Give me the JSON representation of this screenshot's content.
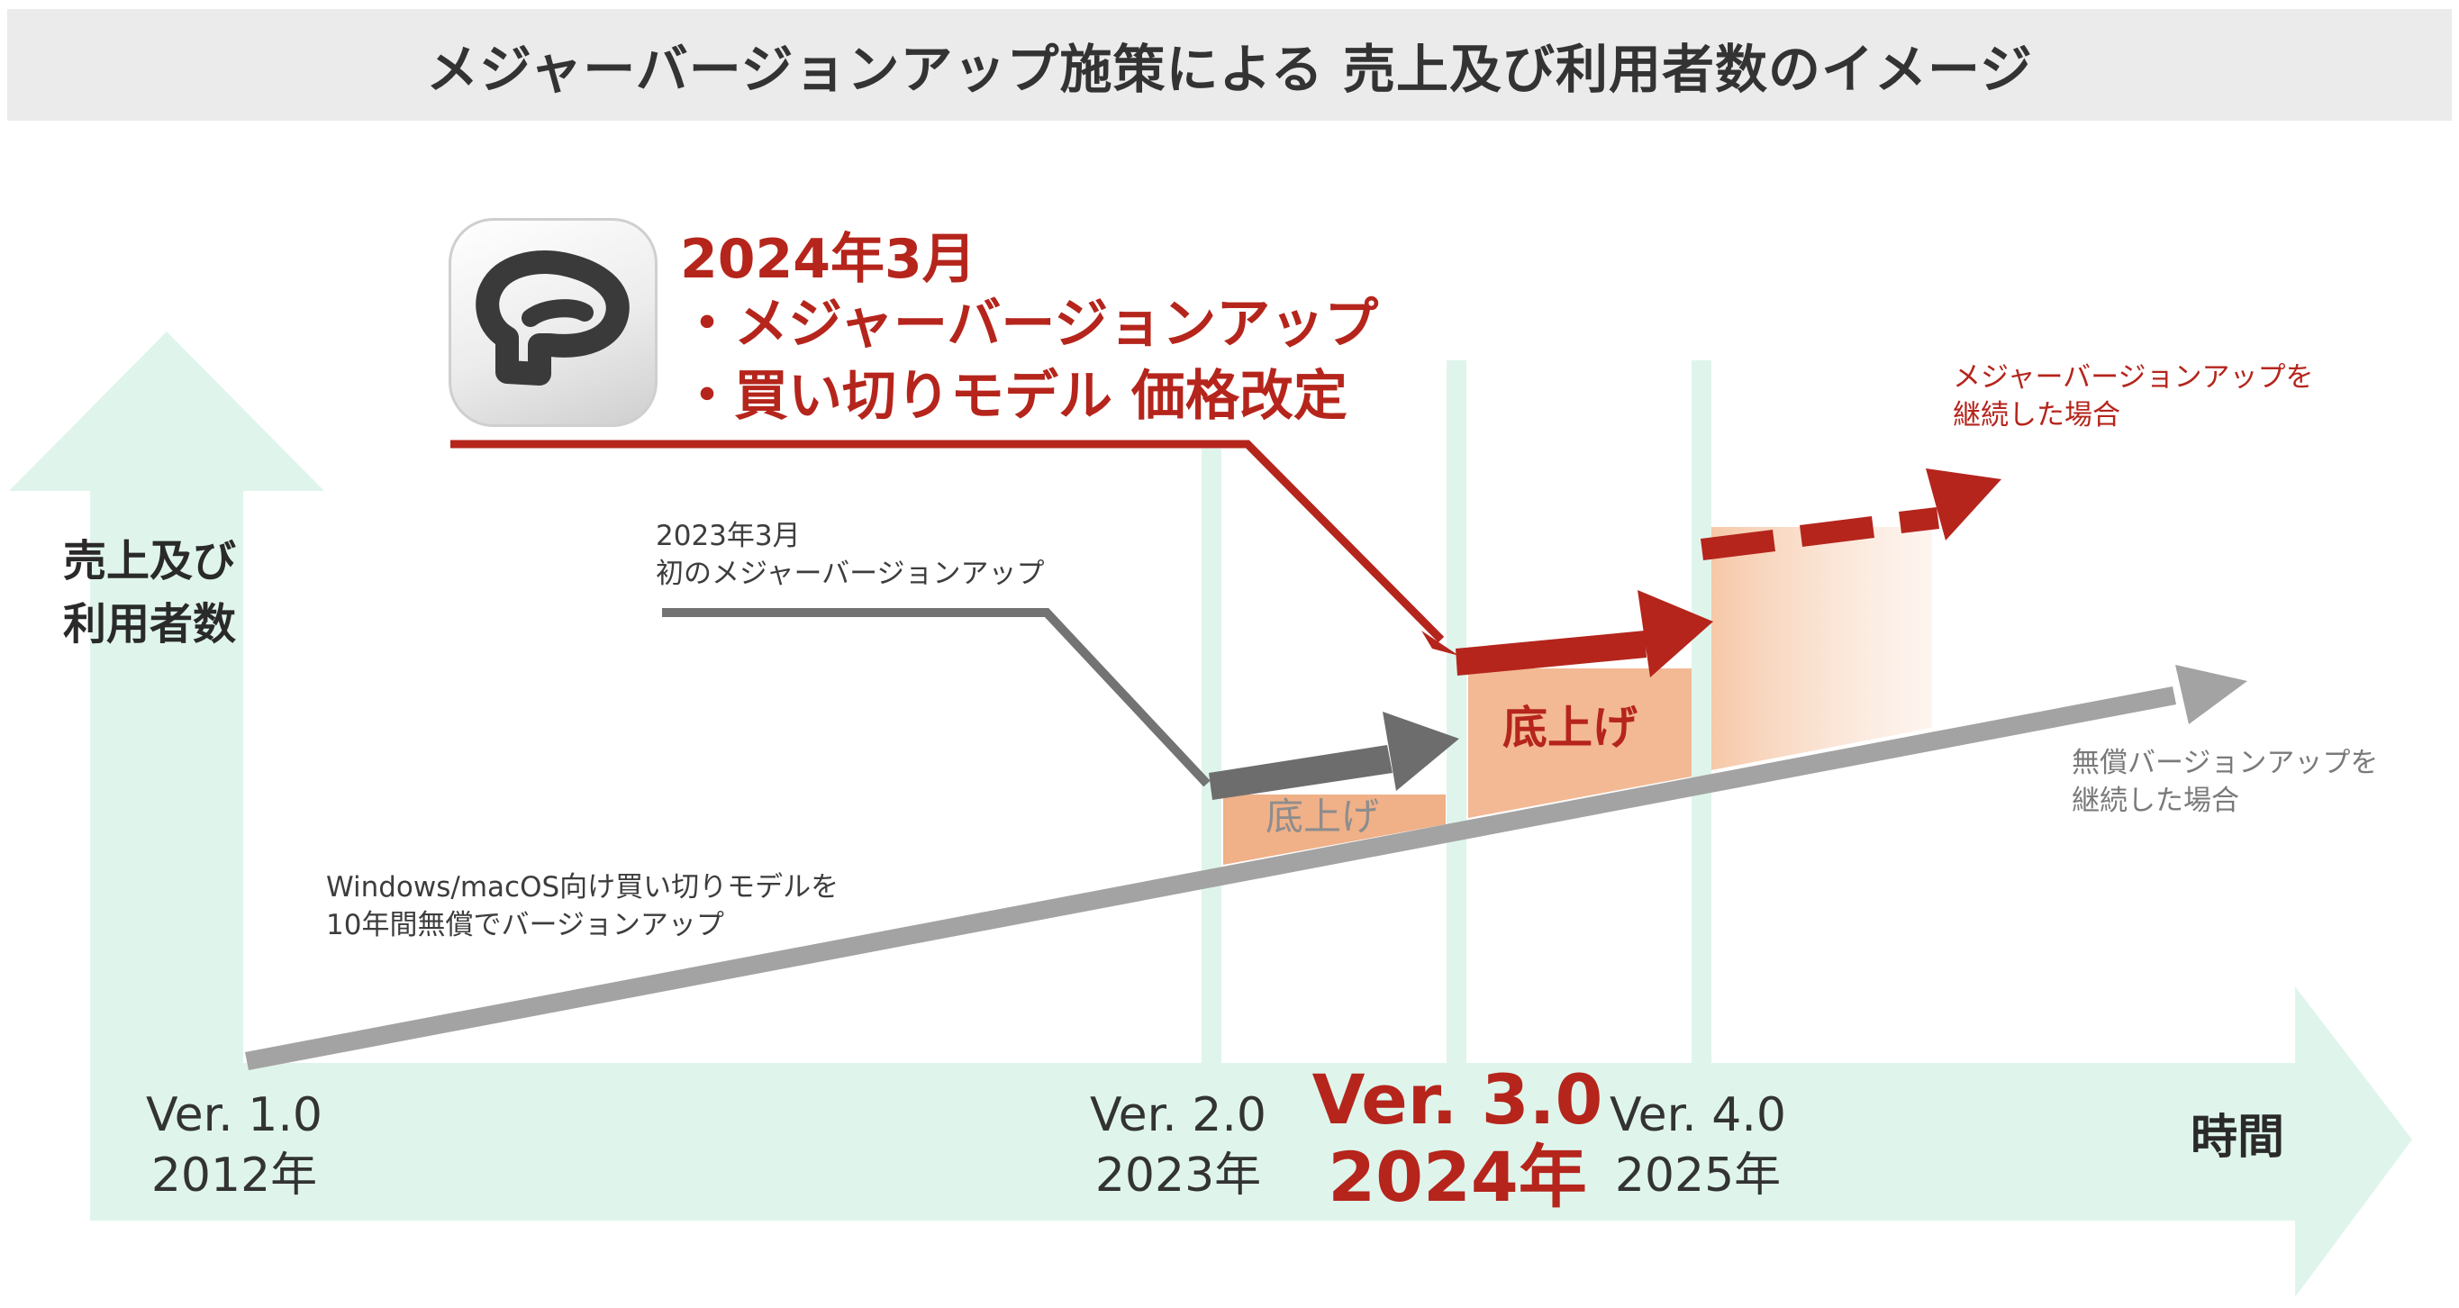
{
  "title": "メジャーバージョンアップ施策による 売上及び利用者数のイメージ",
  "axes": {
    "y_label_line1": "売上及び",
    "y_label_line2": "利用者数",
    "x_label": "時間"
  },
  "announcement": {
    "line1": "2024年3月",
    "line2": "・メジャーバージョンアップ",
    "line3": "・買い切りモデル 価格改定"
  },
  "notes": {
    "first_major_line1": "2023年3月",
    "first_major_line2": "初のメジャーバージョンアップ",
    "baseline_line1": "Windows/macOS向け買い切りモデルを",
    "baseline_line2": "10年間無償でバージョンアップ",
    "continue_major_line1": "メジャーバージョンアップを",
    "continue_major_line2": "継続した場合",
    "continue_free_line1": "無償バージョンアップを",
    "continue_free_line2": "継続した場合"
  },
  "boosts": {
    "ver2_label": "底上げ",
    "ver3_label": "底上げ"
  },
  "milestones": [
    {
      "version": "Ver. 1.0",
      "year": "2012年"
    },
    {
      "version": "Ver. 2.0",
      "year": "2023年"
    },
    {
      "version": "Ver. 3.0",
      "year": "2024年"
    },
    {
      "version": "Ver. 4.0",
      "year": "2025年"
    }
  ],
  "colors": {
    "mint": "#dff5ec",
    "red": "#b5251c",
    "gray_arrow": "#a3a3a3",
    "dark_gray_arrow": "#6d6d6d",
    "boost_fill": "#f0b088"
  }
}
